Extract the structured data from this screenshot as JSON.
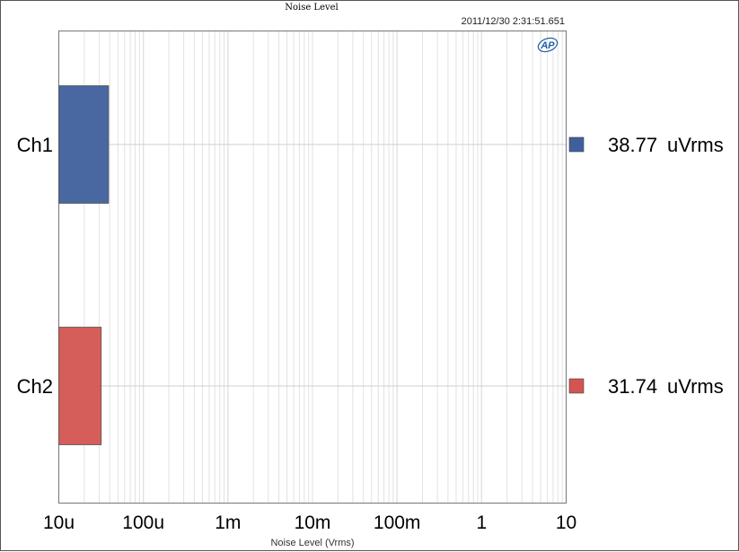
{
  "chart_data": {
    "type": "bar",
    "orientation": "horizontal",
    "title": "Noise Level",
    "timestamp": "2011/12/30 2:31:51.651",
    "xlabel": "Noise Level (Vrms)",
    "ylabel": "",
    "x_scale": "log",
    "xlim": [
      1e-05,
      10
    ],
    "x_ticks": [
      {
        "value": 1e-05,
        "label": "10u"
      },
      {
        "value": 0.0001,
        "label": "100u"
      },
      {
        "value": 0.001,
        "label": "1m"
      },
      {
        "value": 0.01,
        "label": "10m"
      },
      {
        "value": 0.1,
        "label": "100m"
      },
      {
        "value": 1,
        "label": "1"
      },
      {
        "value": 10,
        "label": "10"
      }
    ],
    "grid": true,
    "categories": [
      "Ch1",
      "Ch2"
    ],
    "values": [
      3.877e-05,
      3.174e-05
    ],
    "colors": [
      "#3f5f9c",
      "#d35451"
    ],
    "value_labels": [
      {
        "number": "38.77",
        "unit": "uVrms"
      },
      {
        "number": "31.74",
        "unit": "uVrms"
      }
    ],
    "legend_position": "right",
    "logo": "AP"
  }
}
